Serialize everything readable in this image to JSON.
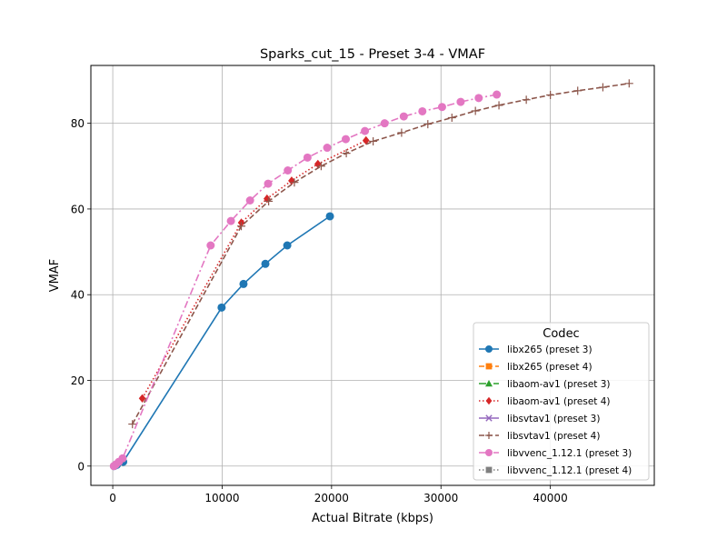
{
  "chart_data": {
    "type": "line",
    "title": "Sparks_cut_15 - Preset 3-4 - VMAF",
    "xlabel": "Actual Bitrate (kbps)",
    "ylabel": "VMAF",
    "xlim": [
      -2000,
      49500
    ],
    "ylim": [
      -4.5,
      93.5
    ],
    "xticks": [
      0,
      10000,
      20000,
      30000,
      40000
    ],
    "yticks": [
      0,
      20,
      40,
      60,
      80
    ],
    "grid": true,
    "legend": {
      "title": "Codec",
      "placement": "lower right"
    },
    "series": [
      {
        "name": "libx265 (preset 3)",
        "color": "#1f77b4",
        "marker": "circle",
        "dash": "solid",
        "x": [
          120,
          380,
          950,
          9950,
          11950,
          13950,
          15950,
          19850
        ],
        "y": [
          0,
          0.3,
          1.0,
          37.0,
          42.5,
          47.2,
          51.5,
          58.3
        ]
      },
      {
        "name": "libx265 (preset 4)",
        "color": "#ff7f0e",
        "marker": "square",
        "dash": "dashed",
        "x": [],
        "y": []
      },
      {
        "name": "libaom-av1 (preset 3)",
        "color": "#2ca02c",
        "marker": "triangle",
        "dash": "dashdot",
        "x": [],
        "y": []
      },
      {
        "name": "libaom-av1 (preset 4)",
        "color": "#d62728",
        "marker": "diamond",
        "dash": "dotted",
        "x": [
          2700,
          11750,
          14100,
          16350,
          18750,
          23150
        ],
        "y": [
          15.8,
          56.8,
          62.4,
          66.6,
          70.5,
          76.0
        ]
      },
      {
        "name": "libsvtav1 (preset 3)",
        "color": "#9467bd",
        "marker": "x",
        "dash": "solid",
        "x": [],
        "y": []
      },
      {
        "name": "libsvtav1 (preset 4)",
        "color": "#8c564b",
        "marker": "plus",
        "dash": "dashed",
        "x": [
          1800,
          11750,
          14250,
          16600,
          19050,
          21350,
          23800,
          26400,
          28800,
          31000,
          33150,
          35300,
          37800,
          40000,
          42500,
          44800,
          47200
        ],
        "y": [
          9.8,
          56.0,
          61.8,
          66.2,
          70.0,
          73.0,
          75.8,
          77.8,
          79.8,
          81.3,
          82.9,
          84.2,
          85.5,
          86.6,
          87.6,
          88.4,
          89.3
        ]
      },
      {
        "name": "libvvenc_1.12.1 (preset 3)",
        "color": "#e377c2",
        "marker": "circle",
        "dash": "dashdot",
        "x": [
          100,
          300,
          560,
          900,
          8950,
          10800,
          12550,
          14200,
          16000,
          17800,
          19600,
          21300,
          23050,
          24850,
          26600,
          28300,
          30100,
          31800,
          33450,
          35100
        ],
        "y": [
          0,
          0.4,
          1.0,
          1.8,
          51.5,
          57.2,
          62.0,
          65.9,
          69.0,
          72.0,
          74.3,
          76.3,
          78.2,
          80.0,
          81.6,
          82.8,
          83.8,
          85.0,
          85.9,
          86.7
        ]
      },
      {
        "name": "libvvenc_1.12.1 (preset 4)",
        "color": "#7f7f7f",
        "marker": "square",
        "dash": "dotted",
        "x": [],
        "y": []
      }
    ]
  }
}
